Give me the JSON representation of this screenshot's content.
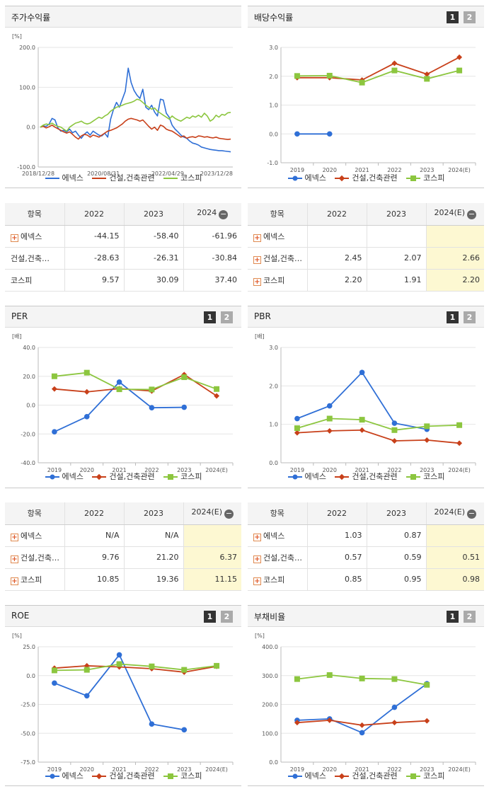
{
  "colors": {
    "company": "#2f6fd6",
    "industry": "#c8401a",
    "kospi": "#8cc63f"
  },
  "legend": {
    "company": "에넥스",
    "industry": "건설,건축관련",
    "kospi": "코스피"
  },
  "panels": {
    "stock": {
      "title": "주가수익률"
    },
    "dividend": {
      "title": "배당수익률",
      "btn1": "1",
      "btn2": "2"
    },
    "per": {
      "title": "PER",
      "btn1": "1",
      "btn2": "2"
    },
    "pbr": {
      "title": "PBR",
      "btn1": "1",
      "btn2": "2"
    },
    "roe": {
      "title": "ROE",
      "btn1": "1",
      "btn2": "2"
    },
    "debt": {
      "title": "부채비율",
      "btn1": "1",
      "btn2": "2"
    }
  },
  "tables": {
    "stock": {
      "headers": [
        "항목",
        "2022",
        "2023",
        "2024"
      ],
      "rows": [
        {
          "name": "에넥스",
          "plus": true,
          "values": [
            "-44.15",
            "-58.40",
            "-61.96"
          ]
        },
        {
          "name": "건설,건축…",
          "plus": false,
          "values": [
            "-28.63",
            "-26.31",
            "-30.84"
          ]
        },
        {
          "name": "코스피",
          "plus": false,
          "values": [
            "9.57",
            "30.09",
            "37.40"
          ]
        }
      ]
    },
    "dividend": {
      "headers": [
        "항목",
        "2022",
        "2023",
        "2024(E)"
      ],
      "rows": [
        {
          "name": "에넥스",
          "plus": true,
          "values": [
            "",
            "",
            ""
          ]
        },
        {
          "name": "건설,건축…",
          "plus": true,
          "values": [
            "2.45",
            "2.07",
            "2.66"
          ]
        },
        {
          "name": "코스피",
          "plus": true,
          "values": [
            "2.20",
            "1.91",
            "2.20"
          ]
        }
      ]
    },
    "per": {
      "headers": [
        "항목",
        "2022",
        "2023",
        "2024(E)"
      ],
      "rows": [
        {
          "name": "에넥스",
          "plus": true,
          "values": [
            "N/A",
            "N/A",
            ""
          ]
        },
        {
          "name": "건설,건축…",
          "plus": true,
          "values": [
            "9.76",
            "21.20",
            "6.37"
          ]
        },
        {
          "name": "코스피",
          "plus": true,
          "values": [
            "10.85",
            "19.36",
            "11.15"
          ]
        }
      ]
    },
    "pbr": {
      "headers": [
        "항목",
        "2022",
        "2023",
        "2024(E)"
      ],
      "rows": [
        {
          "name": "에넥스",
          "plus": true,
          "values": [
            "1.03",
            "0.87",
            ""
          ]
        },
        {
          "name": "건설,건축…",
          "plus": true,
          "values": [
            "0.57",
            "0.59",
            "0.51"
          ]
        },
        {
          "name": "코스피",
          "plus": true,
          "values": [
            "0.85",
            "0.95",
            "0.98"
          ]
        }
      ]
    }
  },
  "chart_data": [
    {
      "id": "stock",
      "type": "line",
      "unit": "[%]",
      "xlabels": [
        "2018/12/28",
        "2020/08/31",
        "2022/04/29",
        "2023/12/28"
      ],
      "yticks": [
        "200.0",
        "100.0",
        "0.0",
        "-100.0"
      ],
      "ylim": [
        -100,
        200
      ],
      "series": [
        {
          "name": "에넥스",
          "values": [
            0,
            3,
            2,
            8,
            22,
            18,
            -2,
            -10,
            -8,
            -12,
            -5,
            -14,
            -10,
            -20,
            -28,
            -18,
            -12,
            -20,
            -10,
            -15,
            -20,
            -22,
            -15,
            -25,
            20,
            45,
            62,
            50,
            70,
            90,
            148,
            112,
            92,
            80,
            72,
            95,
            50,
            44,
            55,
            38,
            28,
            70,
            68,
            35,
            25,
            5,
            -5,
            -12,
            -20,
            -25,
            -28,
            -35,
            -40,
            -42,
            -45,
            -50,
            -52,
            -54,
            -56,
            -57,
            -58,
            -59,
            -59,
            -60,
            -61,
            -62
          ]
        },
        {
          "name": "건설,건축관련",
          "values": [
            0,
            2,
            -2,
            1,
            5,
            0,
            -4,
            -8,
            -12,
            -15,
            -12,
            -18,
            -25,
            -30,
            -22,
            -18,
            -20,
            -25,
            -20,
            -22,
            -25,
            -20,
            -15,
            -10,
            -8,
            -5,
            -2,
            3,
            8,
            15,
            20,
            22,
            20,
            18,
            15,
            18,
            10,
            2,
            -5,
            0,
            -8,
            5,
            2,
            -5,
            -8,
            -10,
            -15,
            -20,
            -25,
            -22,
            -28,
            -25,
            -24,
            -26,
            -22,
            -23,
            -25,
            -24,
            -26,
            -27,
            -25,
            -28,
            -29,
            -30,
            -31,
            -30
          ]
        },
        {
          "name": "코스피",
          "values": [
            0,
            5,
            8,
            6,
            10,
            5,
            2,
            0,
            -5,
            -10,
            0,
            5,
            10,
            12,
            15,
            10,
            8,
            10,
            15,
            20,
            25,
            22,
            28,
            32,
            40,
            45,
            50,
            52,
            55,
            58,
            60,
            62,
            65,
            70,
            68,
            62,
            55,
            50,
            45,
            48,
            40,
            35,
            30,
            25,
            20,
            28,
            22,
            18,
            15,
            20,
            25,
            22,
            28,
            25,
            30,
            25,
            35,
            28,
            15,
            20,
            30,
            25,
            32,
            30,
            36,
            37
          ]
        }
      ]
    },
    {
      "id": "dividend",
      "type": "line",
      "unit": "",
      "categories": [
        "2019",
        "2020",
        "2021",
        "2022",
        "2023",
        "2024(E)"
      ],
      "yticks": [
        "3.0",
        "2.0",
        "1.0",
        "0.0",
        "-1.0"
      ],
      "ylim": [
        -1,
        3
      ],
      "series": [
        {
          "name": "에넥스",
          "values": [
            0.0,
            0.0,
            null,
            null,
            null,
            null
          ]
        },
        {
          "name": "건설,건축관련",
          "values": [
            1.95,
            1.95,
            1.87,
            2.45,
            2.07,
            2.66
          ]
        },
        {
          "name": "코스피",
          "values": [
            2.01,
            2.02,
            1.78,
            2.2,
            1.91,
            2.2
          ]
        }
      ]
    },
    {
      "id": "per",
      "type": "line",
      "unit": "[배]",
      "categories": [
        "2019",
        "2020",
        "2021",
        "2022",
        "2023",
        "2024(E)"
      ],
      "yticks": [
        "40.0",
        "20.0",
        "0.0",
        "-20.0",
        "-40.0"
      ],
      "ylim": [
        -40,
        40
      ],
      "series": [
        {
          "name": "에넥스",
          "values": [
            -18.5,
            -8.0,
            16.0,
            -1.8,
            -1.5,
            null
          ]
        },
        {
          "name": "건설,건축관련",
          "values": [
            11.2,
            9.2,
            11.5,
            9.76,
            21.2,
            6.37
          ]
        },
        {
          "name": "코스피",
          "values": [
            20.0,
            22.5,
            11.0,
            10.85,
            19.36,
            11.15
          ]
        }
      ]
    },
    {
      "id": "pbr",
      "type": "line",
      "unit": "[배]",
      "categories": [
        "2019",
        "2020",
        "2021",
        "2022",
        "2023",
        "2024(E)"
      ],
      "yticks": [
        "3.0",
        "2.0",
        "1.0",
        "0.0"
      ],
      "ylim": [
        0,
        3
      ],
      "series": [
        {
          "name": "에넥스",
          "values": [
            1.15,
            1.48,
            2.35,
            1.03,
            0.87,
            null
          ]
        },
        {
          "name": "건설,건축관련",
          "values": [
            0.78,
            0.83,
            0.85,
            0.57,
            0.59,
            0.51
          ]
        },
        {
          "name": "코스피",
          "values": [
            0.9,
            1.15,
            1.12,
            0.85,
            0.95,
            0.98
          ]
        }
      ]
    },
    {
      "id": "roe",
      "type": "line",
      "unit": "[%]",
      "categories": [
        "2019",
        "2020",
        "2021",
        "2022",
        "2023",
        "2024(E)"
      ],
      "yticks": [
        "25.0",
        "0.0",
        "-25.0",
        "-50.0",
        "-75.0"
      ],
      "ylim": [
        -75,
        25
      ],
      "series": [
        {
          "name": "에넥스",
          "values": [
            -6.5,
            -17.5,
            18.0,
            -42.0,
            -47.0,
            null
          ]
        },
        {
          "name": "건설,건축관련",
          "values": [
            6.5,
            8.5,
            7.5,
            6.0,
            3.0,
            8.0
          ]
        },
        {
          "name": "코스피",
          "values": [
            4.5,
            5.0,
            10.0,
            8.0,
            5.0,
            8.5
          ]
        }
      ]
    },
    {
      "id": "debt",
      "type": "line",
      "unit": "[%]",
      "categories": [
        "2019",
        "2020",
        "2021",
        "2022",
        "2023",
        "2024(E)"
      ],
      "yticks": [
        "400.0",
        "300.0",
        "200.0",
        "100.0",
        "0.0"
      ],
      "ylim": [
        0,
        400
      ],
      "series": [
        {
          "name": "에넥스",
          "values": [
            145,
            150,
            102,
            190,
            272,
            null
          ]
        },
        {
          "name": "건설,건축관련",
          "values": [
            137,
            145,
            128,
            137,
            143,
            null
          ]
        },
        {
          "name": "코스피",
          "values": [
            288,
            302,
            290,
            288,
            268,
            null
          ]
        }
      ]
    }
  ]
}
